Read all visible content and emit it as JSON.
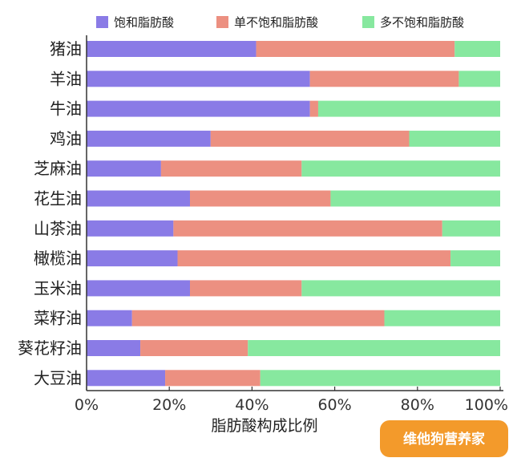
{
  "chart_data": {
    "type": "bar",
    "orientation": "horizontal",
    "stacked": true,
    "categories": [
      "猪油",
      "羊油",
      "牛油",
      "鸡油",
      "芝麻油",
      "花生油",
      "山茶油",
      "橄榄油",
      "玉米油",
      "菜籽油",
      "葵花籽油",
      "大豆油"
    ],
    "series": [
      {
        "name": "饱和脂肪酸",
        "color": "#8a7be6",
        "values": [
          41,
          54,
          54,
          30,
          18,
          25,
          21,
          22,
          25,
          11,
          13,
          19
        ]
      },
      {
        "name": "单不饱和脂肪酸",
        "color": "#ec9081",
        "values": [
          48,
          36,
          2,
          48,
          34,
          34,
          65,
          66,
          27,
          61,
          26,
          23
        ]
      },
      {
        "name": "多不饱和脂肪酸",
        "color": "#87e89f",
        "values": [
          11,
          10,
          44,
          22,
          48,
          41,
          14,
          12,
          48,
          28,
          61,
          58
        ]
      }
    ],
    "xlabel": "脂肪酸构成比例",
    "xlim": [
      0,
      100
    ],
    "xticks": [
      "0%",
      "20%",
      "40%",
      "60%",
      "80%",
      "100%"
    ],
    "legend_position": "top",
    "grid": false
  },
  "watermark": {
    "text": "维他狗营养家",
    "color": "#f39a2b"
  }
}
